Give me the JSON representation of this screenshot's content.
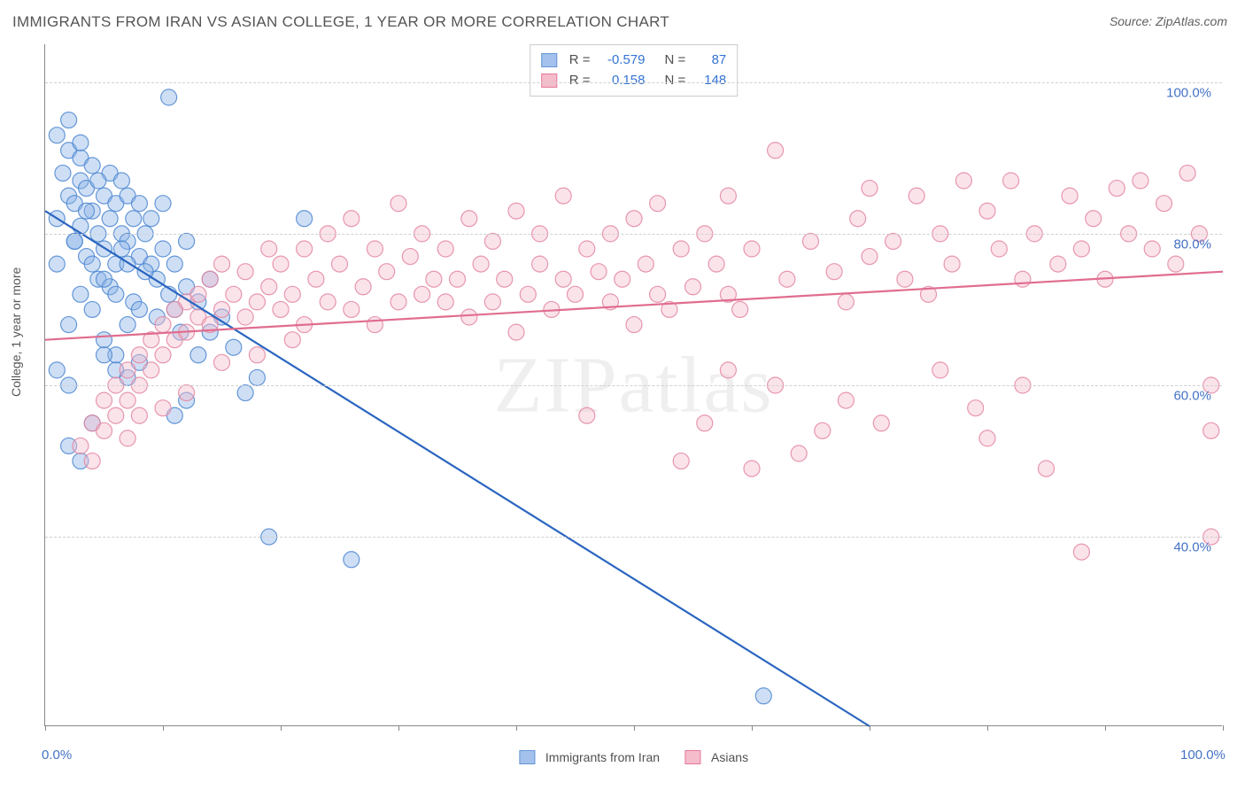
{
  "title": "IMMIGRANTS FROM IRAN VS ASIAN COLLEGE, 1 YEAR OR MORE CORRELATION CHART",
  "source_label": "Source: ZipAtlas.com",
  "watermark": "ZIPatlas",
  "y_axis_label": "College, 1 year or more",
  "chart": {
    "type": "scatter-correlation",
    "background_color": "#ffffff",
    "grid_color": "#d0d0d0",
    "axis_color": "#888888",
    "xlim": [
      0,
      100
    ],
    "ylim": [
      15,
      105
    ],
    "x_ticks": [
      0,
      10,
      20,
      30,
      40,
      50,
      60,
      70,
      80,
      90,
      100
    ],
    "x_tick_labels": {
      "0": "0.0%",
      "100": "100.0%"
    },
    "y_grid": [
      40,
      60,
      80,
      100
    ],
    "y_tick_labels": {
      "40": "40.0%",
      "60": "60.0%",
      "80": "80.0%",
      "100": "100.0%"
    },
    "label_color": "#4472c4",
    "label_fontsize": 15,
    "marker_radius": 9,
    "marker_opacity": 0.42,
    "marker_stroke_opacity": 0.85,
    "line_width": 2.2
  },
  "stat_legend": {
    "prefix_r": "R =",
    "prefix_n": "N =",
    "rows": [
      {
        "swatch_fill": "#a3c1ec",
        "swatch_stroke": "#6596d7",
        "r": "-0.579",
        "n": "87"
      },
      {
        "swatch_fill": "#f5bccc",
        "swatch_stroke": "#e57b9a",
        "r": "0.158",
        "n": "148"
      }
    ]
  },
  "series_legend": [
    {
      "name": "Immigrants from Iran",
      "fill": "#a3c1ec",
      "stroke": "#6596d7"
    },
    {
      "name": "Asians",
      "fill": "#f5bccc",
      "stroke": "#e57b9a"
    }
  ],
  "series": [
    {
      "id": "iran",
      "fill": "#8bb3e6",
      "stroke": "#4e87d1",
      "line_color": "#2b66c0",
      "reg": {
        "x1": 0,
        "y1": 83,
        "x2": 70,
        "y2": 15
      },
      "points": [
        [
          1,
          82
        ],
        [
          1,
          76
        ],
        [
          1.5,
          88
        ],
        [
          2,
          85
        ],
        [
          2,
          91
        ],
        [
          2.5,
          79
        ],
        [
          2.5,
          84
        ],
        [
          3,
          87
        ],
        [
          3,
          81
        ],
        [
          3,
          90
        ],
        [
          3.5,
          77
        ],
        [
          3.5,
          86
        ],
        [
          4,
          83
        ],
        [
          4,
          89
        ],
        [
          4.5,
          80
        ],
        [
          4.5,
          74
        ],
        [
          5,
          85
        ],
        [
          5,
          78
        ],
        [
          5.5,
          82
        ],
        [
          5.5,
          88
        ],
        [
          6,
          76
        ],
        [
          6,
          84
        ],
        [
          6.5,
          80
        ],
        [
          6.5,
          87
        ],
        [
          7,
          79
        ],
        [
          7,
          85
        ],
        [
          7.5,
          82
        ],
        [
          8,
          77
        ],
        [
          8,
          84
        ],
        [
          8.5,
          80
        ],
        [
          9,
          76
        ],
        [
          9,
          82
        ],
        [
          9.5,
          74
        ],
        [
          10,
          78
        ],
        [
          10,
          84
        ],
        [
          10.5,
          98
        ],
        [
          11,
          70
        ],
        [
          11,
          76
        ],
        [
          12,
          73
        ],
        [
          12,
          79
        ],
        [
          13,
          64
        ],
        [
          13,
          71
        ],
        [
          14,
          67
        ],
        [
          14,
          74
        ],
        [
          15,
          69
        ],
        [
          16,
          65
        ],
        [
          2,
          68
        ],
        [
          3,
          72
        ],
        [
          4,
          70
        ],
        [
          5,
          66
        ],
        [
          6,
          64
        ],
        [
          7,
          68
        ],
        [
          8,
          63
        ],
        [
          1,
          62
        ],
        [
          2,
          60
        ],
        [
          11,
          56
        ],
        [
          12,
          58
        ],
        [
          5,
          64
        ],
        [
          6,
          62
        ],
        [
          7,
          61
        ],
        [
          22,
          82
        ],
        [
          17,
          59
        ],
        [
          18,
          61
        ],
        [
          26,
          37
        ],
        [
          19,
          40
        ],
        [
          4,
          55
        ],
        [
          2,
          52
        ],
        [
          3,
          50
        ],
        [
          61,
          19
        ],
        [
          1,
          93
        ],
        [
          2,
          95
        ],
        [
          3,
          92
        ],
        [
          2.5,
          79
        ],
        [
          3.5,
          83
        ],
        [
          4.5,
          87
        ],
        [
          5.5,
          73
        ],
        [
          6.5,
          78
        ],
        [
          7.5,
          71
        ],
        [
          8.5,
          75
        ],
        [
          9.5,
          69
        ],
        [
          10.5,
          72
        ],
        [
          11.5,
          67
        ],
        [
          4,
          76
        ],
        [
          5,
          74
        ],
        [
          6,
          72
        ],
        [
          7,
          76
        ],
        [
          8,
          70
        ]
      ]
    },
    {
      "id": "asians",
      "fill": "#f5bccc",
      "stroke": "#e386a1",
      "line_color": "#e06d8f",
      "reg": {
        "x1": 0,
        "y1": 66,
        "x2": 100,
        "y2": 75
      },
      "points": [
        [
          3,
          52
        ],
        [
          4,
          55
        ],
        [
          4,
          50
        ],
        [
          5,
          54
        ],
        [
          5,
          58
        ],
        [
          6,
          60
        ],
        [
          6,
          56
        ],
        [
          7,
          62
        ],
        [
          7,
          58
        ],
        [
          7,
          53
        ],
        [
          8,
          64
        ],
        [
          8,
          60
        ],
        [
          9,
          66
        ],
        [
          9,
          62
        ],
        [
          10,
          68
        ],
        [
          10,
          64
        ],
        [
          11,
          66
        ],
        [
          11,
          70
        ],
        [
          12,
          71
        ],
        [
          12,
          67
        ],
        [
          13,
          69
        ],
        [
          13,
          72
        ],
        [
          14,
          68
        ],
        [
          14,
          74
        ],
        [
          15,
          70
        ],
        [
          15,
          76
        ],
        [
          16,
          72
        ],
        [
          17,
          69
        ],
        [
          17,
          75
        ],
        [
          18,
          71
        ],
        [
          19,
          73
        ],
        [
          19,
          78
        ],
        [
          20,
          70
        ],
        [
          20,
          76
        ],
        [
          21,
          72
        ],
        [
          22,
          68
        ],
        [
          22,
          78
        ],
        [
          23,
          74
        ],
        [
          24,
          71
        ],
        [
          24,
          80
        ],
        [
          25,
          76
        ],
        [
          26,
          70
        ],
        [
          26,
          82
        ],
        [
          27,
          73
        ],
        [
          28,
          68
        ],
        [
          28,
          78
        ],
        [
          29,
          75
        ],
        [
          30,
          71
        ],
        [
          30,
          84
        ],
        [
          31,
          77
        ],
        [
          32,
          72
        ],
        [
          32,
          80
        ],
        [
          33,
          74
        ],
        [
          34,
          71
        ],
        [
          34,
          78
        ],
        [
          35,
          74
        ],
        [
          36,
          69
        ],
        [
          36,
          82
        ],
        [
          37,
          76
        ],
        [
          38,
          71
        ],
        [
          38,
          79
        ],
        [
          39,
          74
        ],
        [
          40,
          67
        ],
        [
          40,
          83
        ],
        [
          41,
          72
        ],
        [
          42,
          76
        ],
        [
          42,
          80
        ],
        [
          43,
          70
        ],
        [
          44,
          74
        ],
        [
          44,
          85
        ],
        [
          45,
          72
        ],
        [
          46,
          78
        ],
        [
          46,
          56
        ],
        [
          47,
          75
        ],
        [
          48,
          71
        ],
        [
          48,
          80
        ],
        [
          49,
          74
        ],
        [
          50,
          68
        ],
        [
          50,
          82
        ],
        [
          51,
          76
        ],
        [
          52,
          72
        ],
        [
          52,
          84
        ],
        [
          53,
          70
        ],
        [
          54,
          78
        ],
        [
          54,
          50
        ],
        [
          55,
          73
        ],
        [
          56,
          80
        ],
        [
          56,
          55
        ],
        [
          57,
          76
        ],
        [
          58,
          72
        ],
        [
          58,
          85
        ],
        [
          59,
          70
        ],
        [
          60,
          78
        ],
        [
          60,
          49
        ],
        [
          62,
          91
        ],
        [
          63,
          74
        ],
        [
          64,
          51
        ],
        [
          65,
          79
        ],
        [
          66,
          54
        ],
        [
          67,
          75
        ],
        [
          68,
          71
        ],
        [
          69,
          82
        ],
        [
          70,
          77
        ],
        [
          70,
          86
        ],
        [
          71,
          55
        ],
        [
          72,
          79
        ],
        [
          73,
          74
        ],
        [
          74,
          85
        ],
        [
          75,
          72
        ],
        [
          76,
          80
        ],
        [
          77,
          76
        ],
        [
          78,
          87
        ],
        [
          79,
          57
        ],
        [
          80,
          83
        ],
        [
          80,
          53
        ],
        [
          81,
          78
        ],
        [
          82,
          87
        ],
        [
          83,
          74
        ],
        [
          84,
          80
        ],
        [
          85,
          49
        ],
        [
          86,
          76
        ],
        [
          87,
          85
        ],
        [
          88,
          78
        ],
        [
          88,
          38
        ],
        [
          89,
          82
        ],
        [
          90,
          74
        ],
        [
          91,
          86
        ],
        [
          92,
          80
        ],
        [
          93,
          87
        ],
        [
          94,
          78
        ],
        [
          95,
          84
        ],
        [
          96,
          76
        ],
        [
          97,
          88
        ],
        [
          98,
          80
        ],
        [
          99,
          60
        ],
        [
          99,
          54
        ],
        [
          99,
          40
        ],
        [
          83,
          60
        ],
        [
          76,
          62
        ],
        [
          68,
          58
        ],
        [
          62,
          60
        ],
        [
          58,
          62
        ],
        [
          15,
          63
        ],
        [
          18,
          64
        ],
        [
          21,
          66
        ],
        [
          12,
          59
        ],
        [
          10,
          57
        ],
        [
          8,
          56
        ]
      ]
    }
  ]
}
